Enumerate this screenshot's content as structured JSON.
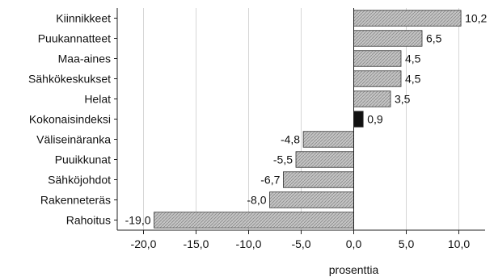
{
  "chart_data": {
    "type": "bar",
    "orientation": "horizontal",
    "categories": [
      "Kiinnikkeet",
      "Puukannatteet",
      "Maa-aines",
      "Sähkökeskukset",
      "Helat",
      "Kokonaisindeksi",
      "Väliseinäranka",
      "Puuikkunat",
      "Sähköjohdot",
      "Rakenneteräs",
      "Rahoitus"
    ],
    "values": [
      10.2,
      6.5,
      4.5,
      4.5,
      3.5,
      0.9,
      -4.8,
      -5.5,
      -6.7,
      -8.0,
      -19.0
    ],
    "value_labels": [
      "10,2",
      "6,5",
      "4,5",
      "4,5",
      "3,5",
      "0,9",
      "-4,8",
      "-5,5",
      "-6,7",
      "-8,0",
      "-19,0"
    ],
    "highlight_category": "Kokonaisindeksi",
    "xlabel": "prosenttia",
    "xlim": [
      -22.5,
      12.5
    ],
    "xticks": [
      -20,
      -15,
      -10,
      -5,
      0,
      5,
      10
    ],
    "xtick_labels": [
      "-20,0",
      "-15,0",
      "-10,0",
      "-5,0",
      "0,0",
      "5,0",
      "10,0"
    ],
    "grid": true,
    "colors": {
      "bar_fill": "#c4c4c4",
      "bar_hatch": "#8a8a8a",
      "highlight": "#111111",
      "grid": "#d6d6d6"
    }
  }
}
